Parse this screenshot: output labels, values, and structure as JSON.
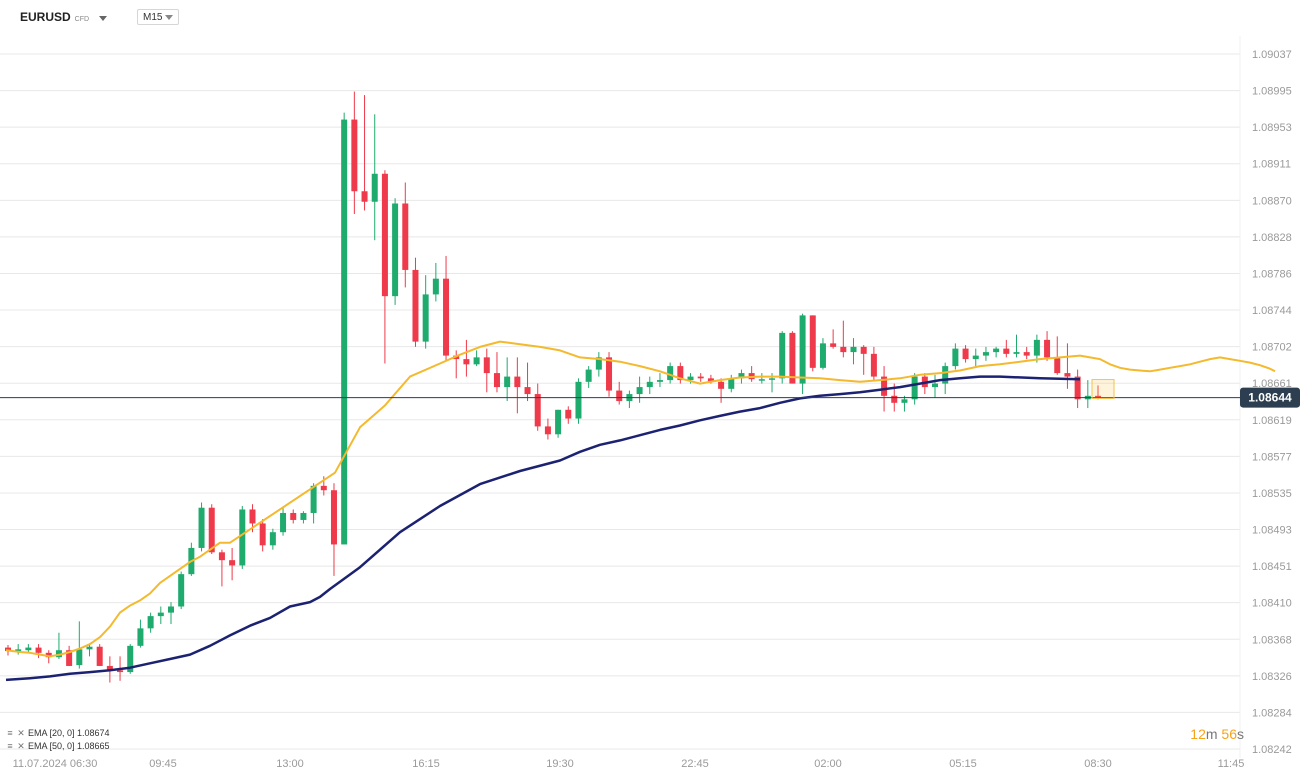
{
  "header": {
    "symbol": "EURUSD",
    "symbol_type": "CFD",
    "timeframe": "M15"
  },
  "legend": [
    {
      "label": "EMA [20, 0] 1.08674"
    },
    {
      "label": "EMA [50, 0] 1.08665"
    }
  ],
  "timer": {
    "minutes": "12",
    "minutes_unit": "m",
    "seconds": "56",
    "seconds_unit": "s"
  },
  "colors": {
    "bull": "#1faa6e",
    "bear": "#ee3a4a",
    "ema20": "#f4b92c",
    "ema50": "#1c2272",
    "price_line": "#2c3e50",
    "grid": "#e8e8e8",
    "current_price_bg": "#2c3e50"
  },
  "chart_data": {
    "type": "candlestick",
    "y_range": [
      1.08242,
      1.09037
    ],
    "y_ticks": [
      "1.09037",
      "1.08995",
      "1.08953",
      "1.08911",
      "1.08870",
      "1.08828",
      "1.08786",
      "1.08744",
      "1.08702",
      "1.08661",
      "1.08619",
      "1.08577",
      "1.08535",
      "1.08493",
      "1.08451",
      "1.08410",
      "1.08368",
      "1.08326",
      "1.08284",
      "1.08242"
    ],
    "x_ticks": [
      "11.07.2024 06:30",
      "09:45",
      "13:00",
      "16:15",
      "19:30",
      "22:45",
      "02:00",
      "05:15",
      "08:30",
      "11:45"
    ],
    "current_price": "1.08644",
    "candles": [
      [
        1.08358,
        1.08361,
        1.08349,
        1.08354
      ],
      [
        1.08354,
        1.08362,
        1.0835,
        1.08356
      ],
      [
        1.08355,
        1.08362,
        1.08352,
        1.08358
      ],
      [
        1.08358,
        1.08362,
        1.08346,
        1.08352
      ],
      [
        1.08352,
        1.08355,
        1.0834,
        1.08347
      ],
      [
        1.08347,
        1.08375,
        1.08345,
        1.08355
      ],
      [
        1.08355,
        1.0836,
        1.08337,
        1.08337
      ],
      [
        1.08338,
        1.08388,
        1.08334,
        1.08356
      ],
      [
        1.08356,
        1.08362,
        1.08348,
        1.08359
      ],
      [
        1.08359,
        1.08362,
        1.08337,
        1.08337
      ],
      [
        1.08337,
        1.08348,
        1.08318,
        1.08332
      ],
      [
        1.08332,
        1.08348,
        1.0832,
        1.0833
      ],
      [
        1.0833,
        1.08362,
        1.08328,
        1.0836
      ],
      [
        1.0836,
        1.0839,
        1.08358,
        1.0838
      ],
      [
        1.0838,
        1.08398,
        1.08375,
        1.08394
      ],
      [
        1.08394,
        1.08405,
        1.08385,
        1.08398
      ],
      [
        1.08398,
        1.0841,
        1.08385,
        1.08405
      ],
      [
        1.08405,
        1.08445,
        1.08402,
        1.08442
      ],
      [
        1.08442,
        1.08478,
        1.0844,
        1.08472
      ],
      [
        1.08472,
        1.08524,
        1.08468,
        1.08518
      ],
      [
        1.08518,
        1.08522,
        1.08465,
        1.08467
      ],
      [
        1.08467,
        1.0847,
        1.08428,
        1.08458
      ],
      [
        1.08458,
        1.08472,
        1.08435,
        1.08452
      ],
      [
        1.08452,
        1.0852,
        1.08448,
        1.08516
      ],
      [
        1.08516,
        1.08522,
        1.0849,
        1.085
      ],
      [
        1.085,
        1.08505,
        1.08468,
        1.08475
      ],
      [
        1.08475,
        1.08494,
        1.0847,
        1.0849
      ],
      [
        1.0849,
        1.08518,
        1.08486,
        1.08512
      ],
      [
        1.08512,
        1.08516,
        1.085,
        1.08504
      ],
      [
        1.08504,
        1.08514,
        1.085,
        1.08512
      ],
      [
        1.08512,
        1.08546,
        1.085,
        1.08543
      ],
      [
        1.08543,
        1.08554,
        1.08532,
        1.08538
      ],
      [
        1.08538,
        1.08546,
        1.0844,
        1.08476
      ],
      [
        1.08476,
        1.0897,
        1.08476,
        1.08962
      ],
      [
        1.08962,
        1.08994,
        1.08854,
        1.0888
      ],
      [
        1.0888,
        1.0899,
        1.08858,
        1.08868
      ],
      [
        1.08868,
        1.08968,
        1.08824,
        1.089
      ],
      [
        1.089,
        1.08904,
        1.08683,
        1.0876
      ],
      [
        1.0876,
        1.08872,
        1.0875,
        1.08866
      ],
      [
        1.08866,
        1.0889,
        1.0877,
        1.0879
      ],
      [
        1.0879,
        1.08804,
        1.08702,
        1.08708
      ],
      [
        1.08708,
        1.08784,
        1.087,
        1.08762
      ],
      [
        1.08762,
        1.08798,
        1.08754,
        1.0878
      ],
      [
        1.0878,
        1.08806,
        1.08686,
        1.08692
      ],
      [
        1.08692,
        1.08698,
        1.08666,
        1.08688
      ],
      [
        1.08688,
        1.0871,
        1.08668,
        1.08682
      ],
      [
        1.08682,
        1.08698,
        1.0868,
        1.0869
      ],
      [
        1.0869,
        1.087,
        1.0865,
        1.08672
      ],
      [
        1.08672,
        1.08696,
        1.0865,
        1.08656
      ],
      [
        1.08656,
        1.0869,
        1.0864,
        1.08668
      ],
      [
        1.08668,
        1.0869,
        1.08626,
        1.08656
      ],
      [
        1.08656,
        1.08684,
        1.0864,
        1.08648
      ],
      [
        1.08648,
        1.0866,
        1.08606,
        1.08611
      ],
      [
        1.08611,
        1.0862,
        1.08596,
        1.08602
      ],
      [
        1.08602,
        1.0863,
        1.08598,
        1.0863
      ],
      [
        1.0863,
        1.08634,
        1.08614,
        1.0862
      ],
      [
        1.0862,
        1.08666,
        1.08614,
        1.08662
      ],
      [
        1.08662,
        1.0868,
        1.08655,
        1.08676
      ],
      [
        1.08676,
        1.08696,
        1.08668,
        1.0869
      ],
      [
        1.0869,
        1.08696,
        1.08645,
        1.08652
      ],
      [
        1.08652,
        1.08662,
        1.08636,
        1.0864
      ],
      [
        1.0864,
        1.08652,
        1.08632,
        1.08648
      ],
      [
        1.08648,
        1.08668,
        1.08638,
        1.08656
      ],
      [
        1.08656,
        1.08668,
        1.08648,
        1.08662
      ],
      [
        1.08662,
        1.08672,
        1.08656,
        1.08664
      ],
      [
        1.08664,
        1.08684,
        1.0866,
        1.0868
      ],
      [
        1.0868,
        1.08684,
        1.0866,
        1.08664
      ],
      [
        1.08664,
        1.08672,
        1.0866,
        1.08668
      ],
      [
        1.08668,
        1.08672,
        1.08662,
        1.08666
      ],
      [
        1.08666,
        1.0867,
        1.0866,
        1.08662
      ],
      [
        1.08662,
        1.08666,
        1.08638,
        1.08654
      ],
      [
        1.08654,
        1.0867,
        1.0865,
        1.08666
      ],
      [
        1.08666,
        1.08676,
        1.0866,
        1.08672
      ],
      [
        1.08672,
        1.0868,
        1.08662,
        1.08665
      ],
      [
        1.08665,
        1.08672,
        1.0866,
        1.08665
      ],
      [
        1.08665,
        1.08672,
        1.0865,
        1.08666
      ],
      [
        1.08666,
        1.0872,
        1.0866,
        1.08718
      ],
      [
        1.08718,
        1.0872,
        1.0866,
        1.0866
      ],
      [
        1.0866,
        1.0874,
        1.08648,
        1.08738
      ],
      [
        1.08738,
        1.08738,
        1.08674,
        1.08678
      ],
      [
        1.08678,
        1.08712,
        1.08676,
        1.08706
      ],
      [
        1.08706,
        1.08722,
        1.087,
        1.08702
      ],
      [
        1.08702,
        1.08732,
        1.0869,
        1.08696
      ],
      [
        1.08696,
        1.08712,
        1.08682,
        1.08702
      ],
      [
        1.08702,
        1.08704,
        1.0867,
        1.08694
      ],
      [
        1.08694,
        1.08702,
        1.08664,
        1.08668
      ],
      [
        1.08668,
        1.0868,
        1.08628,
        1.08646
      ],
      [
        1.08646,
        1.0866,
        1.08628,
        1.08638
      ],
      [
        1.08638,
        1.08646,
        1.08628,
        1.08642
      ],
      [
        1.08642,
        1.08672,
        1.08636,
        1.08668
      ],
      [
        1.08668,
        1.08672,
        1.08648,
        1.08656
      ],
      [
        1.08656,
        1.0867,
        1.08644,
        1.0866
      ],
      [
        1.0866,
        1.08684,
        1.08648,
        1.0868
      ],
      [
        1.0868,
        1.08706,
        1.08676,
        1.087
      ],
      [
        1.087,
        1.08704,
        1.08684,
        1.08688
      ],
      [
        1.08688,
        1.087,
        1.0868,
        1.08692
      ],
      [
        1.08692,
        1.08702,
        1.08686,
        1.08696
      ],
      [
        1.08696,
        1.08702,
        1.0869,
        1.087
      ],
      [
        1.087,
        1.0871,
        1.0869,
        1.08694
      ],
      [
        1.08694,
        1.08716,
        1.0869,
        1.08696
      ],
      [
        1.08696,
        1.08702,
        1.08688,
        1.08692
      ],
      [
        1.08692,
        1.08716,
        1.08684,
        1.0871
      ],
      [
        1.0871,
        1.0872,
        1.08686,
        1.0869
      ],
      [
        1.0869,
        1.08714,
        1.0867,
        1.08672
      ],
      [
        1.08672,
        1.08706,
        1.08654,
        1.08668
      ],
      [
        1.08668,
        1.08676,
        1.08632,
        1.08642
      ],
      [
        1.08642,
        1.08664,
        1.08632,
        1.08646
      ],
      [
        1.08646,
        1.08658,
        1.08642,
        1.08645
      ]
    ],
    "ema20": [
      1.08355,
      1.08353,
      1.08352,
      1.0835,
      1.08348,
      1.0835,
      1.08353,
      1.08357,
      1.08362,
      1.0837,
      1.08382,
      1.08398,
      1.08406,
      1.08412,
      1.0842,
      1.08432,
      1.0844,
      1.08448,
      1.08456,
      1.08462,
      1.0847,
      1.08478,
      1.08478,
      1.08558,
      1.0861,
      1.08635,
      1.08668,
      1.08683,
      1.08693,
      1.08702,
      1.08708,
      1.08705,
      1.08702,
      1.08698,
      1.0869,
      1.08688,
      1.08685,
      1.0868,
      1.08674,
      1.08666,
      1.0866,
      1.08664,
      1.08667,
      1.08668,
      1.08668,
      1.08667,
      1.08666,
      1.08664,
      1.08662,
      1.08664,
      1.08666,
      1.0867,
      1.08672,
      1.08675,
      1.0868,
      1.08682,
      1.08685,
      1.08688,
      1.0869,
      1.08692,
      1.08688,
      1.08682,
      1.08678,
      1.08676,
      1.08675,
      1.08674,
      1.08676,
      1.08678,
      1.0868,
      1.08682,
      1.08685,
      1.08688,
      1.0869,
      1.08688,
      1.08686,
      1.08684,
      1.08681,
      1.08677,
      1.08674
    ],
    "ema20_x": [
      6,
      20,
      30,
      40,
      50,
      60,
      70,
      80,
      90,
      100,
      110,
      120,
      130,
      140,
      150,
      160,
      170,
      180,
      190,
      200,
      210,
      220,
      230,
      335,
      360,
      385,
      410,
      440,
      460,
      480,
      500,
      520,
      540,
      560,
      580,
      600,
      620,
      640,
      660,
      680,
      700,
      720,
      740,
      760,
      780,
      800,
      820,
      840,
      860,
      880,
      900,
      920,
      940,
      960,
      980,
      1000,
      1020,
      1040,
      1060,
      1080,
      1100,
      1110,
      1120,
      1130,
      1140,
      1150,
      1160,
      1170,
      1180,
      1190,
      1200,
      1210,
      1220,
      1230,
      1240,
      1250,
      1260,
      1270,
      1275
    ],
    "ema50": [
      1.08321,
      1.08323,
      1.08325,
      1.08328,
      1.0833,
      1.08332,
      1.08335,
      1.0834,
      1.08345,
      1.0835,
      1.0836,
      1.08372,
      1.08383,
      1.08392,
      1.08405,
      1.0841,
      1.08416,
      1.08425,
      1.0845,
      1.0849,
      1.0852,
      1.08545,
      1.0856,
      1.08572,
      1.08582,
      1.0859,
      1.08595,
      1.08601,
      1.08607,
      1.08612,
      1.08618,
      1.08623,
      1.08628,
      1.08632,
      1.08638,
      1.08643,
      1.08646,
      1.08648,
      1.0865,
      1.08653,
      1.08656,
      1.0866,
      1.08664,
      1.08666,
      1.08668,
      1.08668,
      1.08666,
      1.08665
    ],
    "ema50_x": [
      6,
      30,
      50,
      70,
      90,
      110,
      130,
      150,
      170,
      190,
      210,
      230,
      250,
      270,
      290,
      310,
      320,
      330,
      360,
      400,
      440,
      480,
      520,
      560,
      580,
      600,
      620,
      640,
      660,
      680,
      700,
      720,
      740,
      760,
      780,
      800,
      820,
      840,
      860,
      880,
      900,
      920,
      940,
      960,
      980,
      1000,
      1040,
      1080
    ]
  }
}
